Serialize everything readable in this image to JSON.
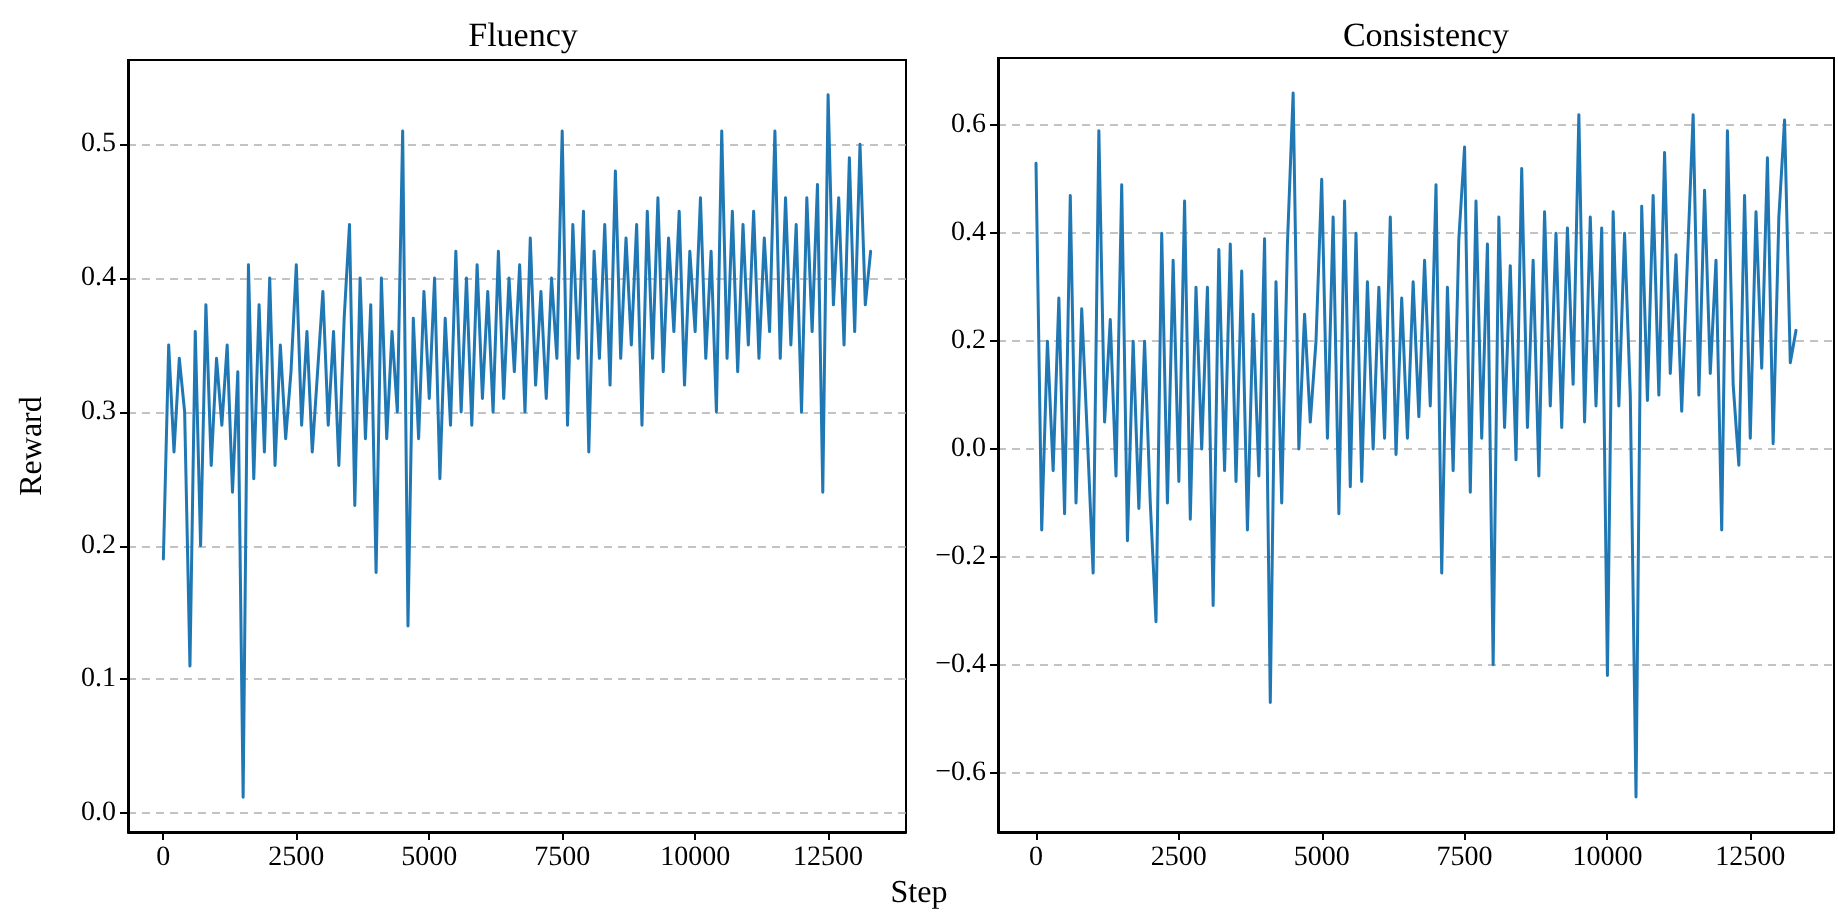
{
  "chart_data": [
    {
      "type": "line",
      "title": "Fluency",
      "xlabel": "Step",
      "ylabel": "Reward",
      "grid": "y",
      "marker": "none",
      "line_style": "solid",
      "xlim": [
        -665,
        13965
      ],
      "xticks": [
        0,
        2500,
        5000,
        7500,
        10000,
        12500
      ],
      "ylim": [
        -0.014,
        0.563
      ],
      "yticks": [
        {
          "value": 0,
          "label": "0.0"
        },
        0.1,
        0.2,
        0.3,
        0.4,
        0.5
      ],
      "x": [
        0,
        100,
        200,
        300,
        400,
        500,
        600,
        700,
        800,
        900,
        1000,
        1100,
        1200,
        1300,
        1400,
        1500,
        1600,
        1700,
        1800,
        1900,
        2000,
        2100,
        2200,
        2300,
        2400,
        2500,
        2600,
        2700,
        2800,
        2900,
        3000,
        3100,
        3200,
        3300,
        3400,
        3500,
        3600,
        3700,
        3800,
        3900,
        4000,
        4100,
        4200,
        4300,
        4400,
        4500,
        4600,
        4700,
        4800,
        4900,
        5000,
        5100,
        5200,
        5300,
        5400,
        5500,
        5600,
        5700,
        5800,
        5900,
        6000,
        6100,
        6200,
        6300,
        6400,
        6500,
        6600,
        6700,
        6800,
        6900,
        7000,
        7100,
        7200,
        7300,
        7400,
        7500,
        7600,
        7700,
        7800,
        7900,
        8000,
        8100,
        8200,
        8300,
        8400,
        8500,
        8600,
        8700,
        8800,
        8900,
        9000,
        9100,
        9200,
        9300,
        9400,
        9500,
        9600,
        9700,
        9800,
        9900,
        10000,
        10100,
        10200,
        10300,
        10400,
        10500,
        10600,
        10700,
        10800,
        10900,
        11000,
        11100,
        11200,
        11300,
        11400,
        11500,
        11600,
        11700,
        11800,
        11900,
        12000,
        12100,
        12200,
        12300,
        12400,
        12500,
        12600,
        12700,
        12800,
        12900,
        13000,
        13100,
        13200,
        13300
      ],
      "series": [
        {
          "color": "#1f77b4",
          "values": [
            0.19,
            0.35,
            0.27,
            0.34,
            0.3,
            0.11,
            0.36,
            0.2,
            0.38,
            0.26,
            0.34,
            0.29,
            0.35,
            0.24,
            0.33,
            0.012,
            0.41,
            0.25,
            0.38,
            0.27,
            0.4,
            0.26,
            0.35,
            0.28,
            0.33,
            0.41,
            0.29,
            0.36,
            0.27,
            0.33,
            0.39,
            0.29,
            0.36,
            0.26,
            0.37,
            0.44,
            0.23,
            0.4,
            0.28,
            0.38,
            0.18,
            0.4,
            0.28,
            0.36,
            0.3,
            0.51,
            0.14,
            0.37,
            0.28,
            0.39,
            0.31,
            0.4,
            0.25,
            0.37,
            0.29,
            0.42,
            0.3,
            0.4,
            0.29,
            0.41,
            0.31,
            0.39,
            0.3,
            0.42,
            0.31,
            0.4,
            0.33,
            0.41,
            0.3,
            0.43,
            0.32,
            0.39,
            0.31,
            0.4,
            0.34,
            0.51,
            0.29,
            0.44,
            0.34,
            0.45,
            0.27,
            0.42,
            0.34,
            0.44,
            0.32,
            0.48,
            0.34,
            0.43,
            0.35,
            0.44,
            0.29,
            0.45,
            0.34,
            0.46,
            0.33,
            0.43,
            0.36,
            0.45,
            0.32,
            0.42,
            0.36,
            0.46,
            0.34,
            0.42,
            0.3,
            0.51,
            0.34,
            0.45,
            0.33,
            0.44,
            0.35,
            0.45,
            0.34,
            0.43,
            0.36,
            0.51,
            0.34,
            0.46,
            0.35,
            0.44,
            0.3,
            0.46,
            0.36,
            0.47,
            0.24,
            0.537,
            0.38,
            0.46,
            0.35,
            0.49,
            0.36,
            0.5,
            0.38,
            0.42
          ]
        }
      ]
    },
    {
      "type": "line",
      "title": "Consistency",
      "grid": "y",
      "marker": "none",
      "line_style": "solid",
      "xlim": [
        -665,
        13965
      ],
      "xticks": [
        0,
        2500,
        5000,
        7500,
        10000,
        12500
      ],
      "ylim": [
        -0.71,
        0.725
      ],
      "yticks": [
        {
          "value": -0.6,
          "label": "−0.6"
        },
        {
          "value": -0.4,
          "label": "−0.4"
        },
        {
          "value": -0.2,
          "label": "−0.2"
        },
        {
          "value": 0,
          "label": "0.0"
        },
        0.2,
        0.4,
        0.6
      ],
      "x": [
        0,
        100,
        200,
        300,
        400,
        500,
        600,
        700,
        800,
        900,
        1000,
        1100,
        1200,
        1300,
        1400,
        1500,
        1600,
        1700,
        1800,
        1900,
        2000,
        2100,
        2200,
        2300,
        2400,
        2500,
        2600,
        2700,
        2800,
        2900,
        3000,
        3100,
        3200,
        3300,
        3400,
        3500,
        3600,
        3700,
        3800,
        3900,
        4000,
        4100,
        4200,
        4300,
        4400,
        4500,
        4600,
        4700,
        4800,
        4900,
        5000,
        5100,
        5200,
        5300,
        5400,
        5500,
        5600,
        5700,
        5800,
        5900,
        6000,
        6100,
        6200,
        6300,
        6400,
        6500,
        6600,
        6700,
        6800,
        6900,
        7000,
        7100,
        7200,
        7300,
        7400,
        7500,
        7600,
        7700,
        7800,
        7900,
        8000,
        8100,
        8200,
        8300,
        8400,
        8500,
        8600,
        8700,
        8800,
        8900,
        9000,
        9100,
        9200,
        9300,
        9400,
        9500,
        9600,
        9700,
        9800,
        9900,
        10000,
        10100,
        10200,
        10300,
        10400,
        10500,
        10600,
        10700,
        10800,
        10900,
        11000,
        11100,
        11200,
        11300,
        11400,
        11500,
        11600,
        11700,
        11800,
        11900,
        12000,
        12100,
        12200,
        12300,
        12400,
        12500,
        12600,
        12700,
        12800,
        12900,
        13000,
        13100,
        13200,
        13300
      ],
      "series": [
        {
          "color": "#1f77b4",
          "values": [
            0.53,
            -0.15,
            0.2,
            -0.04,
            0.28,
            -0.12,
            0.47,
            -0.1,
            0.26,
            0.02,
            -0.23,
            0.59,
            0.05,
            0.24,
            -0.05,
            0.49,
            -0.17,
            0.2,
            -0.11,
            0.2,
            -0.1,
            -0.32,
            0.4,
            -0.1,
            0.35,
            -0.06,
            0.46,
            -0.13,
            0.3,
            0.0,
            0.3,
            -0.29,
            0.37,
            -0.04,
            0.38,
            -0.06,
            0.33,
            -0.15,
            0.25,
            -0.05,
            0.39,
            -0.47,
            0.31,
            -0.1,
            0.38,
            0.66,
            0.0,
            0.25,
            0.05,
            0.2,
            0.5,
            0.02,
            0.43,
            -0.12,
            0.46,
            -0.07,
            0.4,
            -0.06,
            0.31,
            0.0,
            0.3,
            0.02,
            0.43,
            -0.01,
            0.28,
            0.02,
            0.31,
            0.06,
            0.35,
            0.08,
            0.49,
            -0.23,
            0.3,
            -0.04,
            0.39,
            0.56,
            -0.08,
            0.46,
            0.02,
            0.38,
            -0.4,
            0.43,
            0.04,
            0.34,
            -0.02,
            0.52,
            0.04,
            0.35,
            -0.05,
            0.44,
            0.08,
            0.4,
            0.04,
            0.41,
            0.12,
            0.62,
            0.05,
            0.43,
            0.08,
            0.41,
            -0.42,
            0.44,
            0.08,
            0.4,
            0.1,
            -0.645,
            0.45,
            0.09,
            0.47,
            0.1,
            0.55,
            0.14,
            0.36,
            0.07,
            0.35,
            0.62,
            0.1,
            0.48,
            0.14,
            0.35,
            -0.15,
            0.59,
            0.12,
            -0.03,
            0.47,
            0.02,
            0.44,
            0.15,
            0.54,
            0.01,
            0.43,
            0.61,
            0.16,
            0.22
          ]
        }
      ]
    }
  ]
}
